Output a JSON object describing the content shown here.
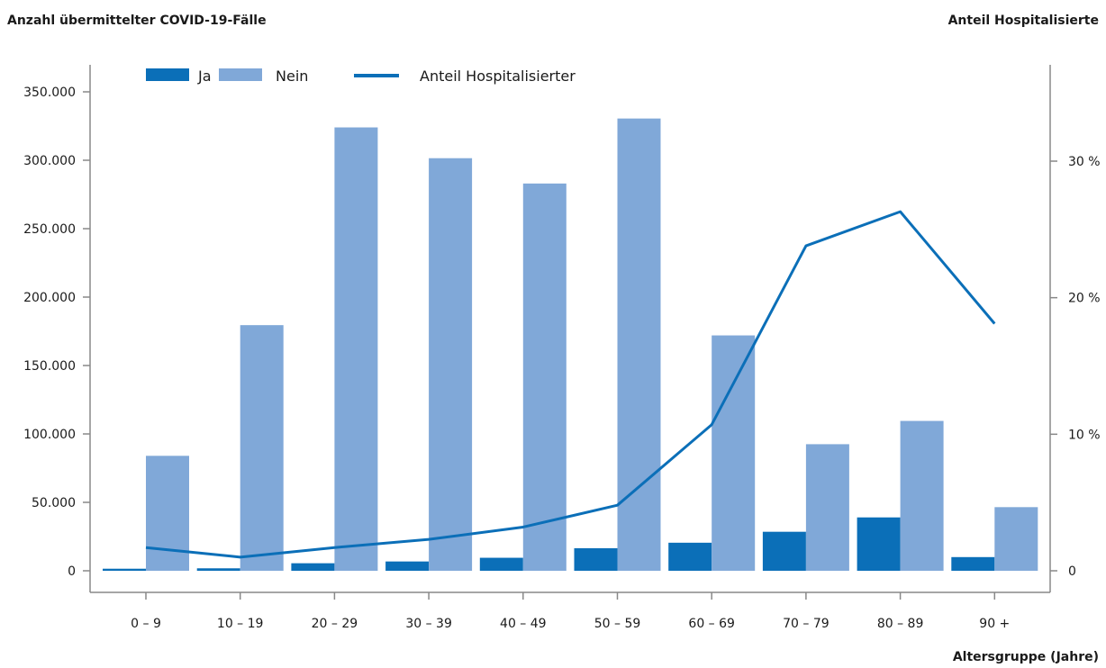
{
  "chart_data": {
    "type": "bar",
    "ylabel": "Anzahl übermittelter COVID-19-Fälle",
    "y2label": "Anteil Hospitalisierte",
    "xlabel": "Altersgruppe (Jahre)",
    "categories": [
      "0 – 9",
      "10 – 19",
      "20 – 29",
      "30 – 39",
      "40 – 49",
      "50 – 59",
      "60 – 69",
      "70 – 79",
      "80 – 89",
      "90 +"
    ],
    "ylim": [
      0,
      350000
    ],
    "yticks": [
      0,
      50000,
      100000,
      150000,
      200000,
      250000,
      300000,
      350000
    ],
    "ytick_labels": [
      "0",
      "50.000",
      "100.000",
      "150.000",
      "200.000",
      "250.000",
      "300.000",
      "350.000"
    ],
    "y2ticks": [
      0,
      10,
      20,
      30
    ],
    "y2tick_labels": [
      "0",
      "10 %",
      "20 %",
      "30 %"
    ],
    "y2_unit": "percent",
    "series": [
      {
        "name": "Ja",
        "type": "bar",
        "color": "#0b6fb8",
        "values": [
          1500,
          1800,
          5500,
          6800,
          9500,
          16500,
          20500,
          28500,
          39000,
          10000
        ]
      },
      {
        "name": "Nein",
        "type": "bar",
        "color": "#80a8d8",
        "values": [
          84000,
          179500,
          324000,
          301500,
          283000,
          330500,
          172000,
          92500,
          109500,
          46500
        ]
      },
      {
        "name": "Anteil Hospitalisierter",
        "type": "line",
        "axis": "right",
        "color": "#0b6fb8",
        "values": [
          1.7,
          1.0,
          1.7,
          2.3,
          3.2,
          4.8,
          10.7,
          23.8,
          26.3,
          18.1
        ]
      }
    ],
    "legend_position": "top-left",
    "grid": false
  }
}
